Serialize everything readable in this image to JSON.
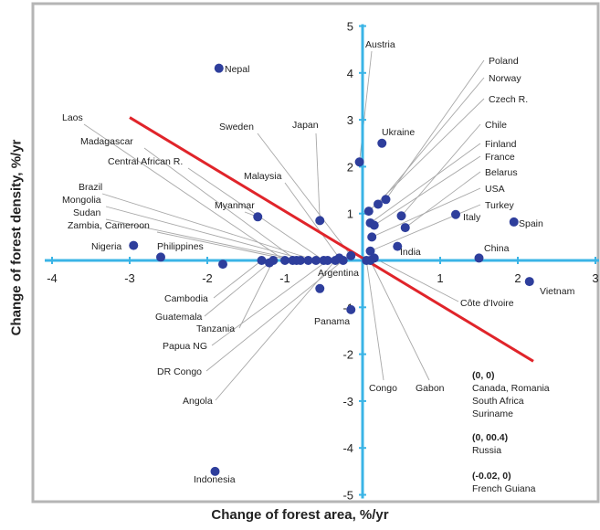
{
  "chart_data": {
    "type": "scatter",
    "xlabel": "Change of forest area, %/yr",
    "ylabel": "Change of forest density, %/yr",
    "xlim": [
      -4,
      3
    ],
    "ylim": [
      -5,
      5
    ],
    "x_ticks": [
      "-4",
      "-3",
      "-2",
      "-1",
      "0",
      "1",
      "2",
      "3"
    ],
    "y_ticks": [
      "5",
      "4",
      "3",
      "2",
      "1",
      "-1",
      "-2",
      "-3",
      "-4",
      "-5"
    ],
    "grid": false,
    "colors": {
      "axis": "#3ab4e6",
      "points": "#2e3e9c",
      "trend": "#e0242a",
      "leader": "#a8a8a8",
      "frame": "#b5b5b5"
    },
    "trend_line": {
      "from": [
        -3.0,
        3.05
      ],
      "to": [
        2.2,
        -2.15
      ]
    },
    "points": [
      {
        "label": "Nepal",
        "x": -1.85,
        "y": 4.1
      },
      {
        "label": "Austria",
        "x": -0.04,
        "y": 2.1
      },
      {
        "label": "Ukraine",
        "x": 0.25,
        "y": 2.5
      },
      {
        "label": "Poland",
        "x": 0.3,
        "y": 1.3
      },
      {
        "label": "Norway",
        "x": 0.2,
        "y": 1.2
      },
      {
        "label": "Czech R.",
        "x": 0.08,
        "y": 1.05
      },
      {
        "label": "Chile",
        "x": 0.5,
        "y": 0.95
      },
      {
        "label": "Finland",
        "x": 0.1,
        "y": 0.8
      },
      {
        "label": "France",
        "x": 0.15,
        "y": 0.75
      },
      {
        "label": "Belarus",
        "x": 0.55,
        "y": 0.7
      },
      {
        "label": "USA",
        "x": 0.12,
        "y": 0.5
      },
      {
        "label": "Turkey",
        "x": 0.1,
        "y": 0.2
      },
      {
        "label": "Italy",
        "x": 1.2,
        "y": 0.98
      },
      {
        "label": "Spain",
        "x": 1.95,
        "y": 0.82
      },
      {
        "label": "India",
        "x": 0.45,
        "y": 0.3
      },
      {
        "label": "China",
        "x": 1.5,
        "y": 0.05
      },
      {
        "label": "Vietnam",
        "x": 2.15,
        "y": -0.45
      },
      {
        "label": "Côte d'Ivoire",
        "x": 0.15,
        "y": 0.05
      },
      {
        "label": "Japan",
        "x": -0.55,
        "y": 0.85
      },
      {
        "label": "Sweden",
        "x": -0.15,
        "y": 0.1
      },
      {
        "label": "Malaysia",
        "x": -0.3,
        "y": 0.05
      },
      {
        "label": "Myanmar",
        "x": -1.35,
        "y": 0.93
      },
      {
        "label": "Laos",
        "x": -1.0,
        "y": 0.0
      },
      {
        "label": "Madagascar",
        "x": -0.85,
        "y": 0.0
      },
      {
        "label": "Central African R.",
        "x": -0.5,
        "y": 0.0
      },
      {
        "label": "Brazil",
        "x": -0.6,
        "y": 0.0
      },
      {
        "label": "Mongolia",
        "x": -0.7,
        "y": 0.0
      },
      {
        "label": "Sudan",
        "x": -0.8,
        "y": 0.0
      },
      {
        "label": "Zambia, Cameroon",
        "x": -0.9,
        "y": 0.0
      },
      {
        "label": "Nigeria",
        "x": -2.95,
        "y": 0.32
      },
      {
        "label": "Philippines",
        "x": -2.6,
        "y": 0.07
      },
      {
        "label": "Cambodia",
        "x": -1.3,
        "y": 0.0
      },
      {
        "label": "Guatemala",
        "x": -1.2,
        "y": -0.05
      },
      {
        "label": "Tanzania",
        "x": -1.15,
        "y": 0.0
      },
      {
        "label": "Papua NG",
        "x": -0.45,
        "y": 0.0
      },
      {
        "label": "DR Congo",
        "x": -0.25,
        "y": 0.0
      },
      {
        "label": "Angola",
        "x": -0.35,
        "y": 0.0
      },
      {
        "label": "Argentina",
        "x": -0.55,
        "y": -0.6
      },
      {
        "label": "Panama",
        "x": -0.15,
        "y": -1.05
      },
      {
        "label": "Congo",
        "x": 0.05,
        "y": 0.0
      },
      {
        "label": "Gabon",
        "x": 0.1,
        "y": 0.0
      },
      {
        "label": "",
        "x": -1.8,
        "y": -0.08
      },
      {
        "label": "Indonesia",
        "x": -1.9,
        "y": -4.5
      }
    ],
    "annotations": [
      "(0, 0)",
      "Canada, Romania",
      "South Africa",
      "Suriname",
      "(0, 00.4)",
      "Russia",
      "(-0.02, 0)",
      "French Guiana"
    ]
  }
}
